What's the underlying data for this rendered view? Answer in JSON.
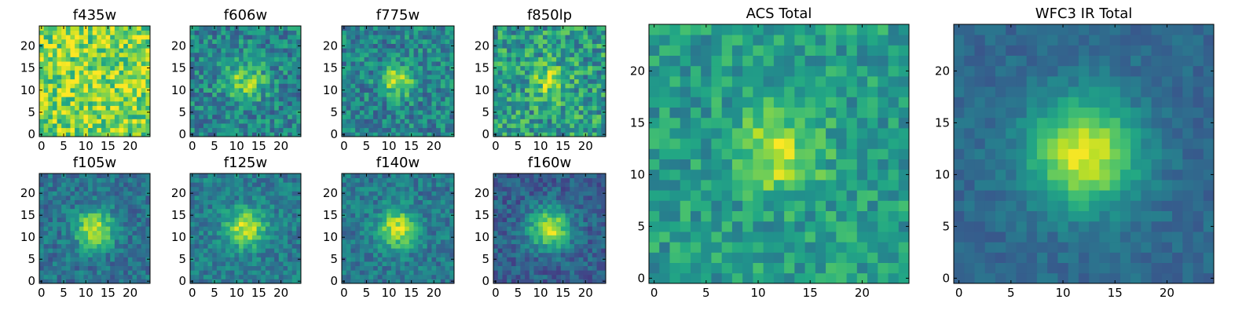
{
  "chart_data": [
    {
      "type": "heatmap",
      "title": "f435w",
      "xticks": [
        "0",
        "5",
        "10",
        "15",
        "20"
      ],
      "yticks": [
        "0",
        "5",
        "10",
        "15",
        "20"
      ],
      "xlim": [
        -0.5,
        24.5
      ],
      "ylim": [
        -0.5,
        24.5
      ],
      "grid_size": 25,
      "colormap": "viridis",
      "center": [
        12,
        12
      ],
      "peak_width": 9.0,
      "peak_strength": 0.05,
      "background": 0.78,
      "noise": 0.24,
      "seed": 11
    },
    {
      "type": "heatmap",
      "title": "f606w",
      "xticks": [
        "0",
        "5",
        "10",
        "15",
        "20"
      ],
      "yticks": [
        "0",
        "5",
        "10",
        "15",
        "20"
      ],
      "xlim": [
        -0.5,
        24.5
      ],
      "ylim": [
        -0.5,
        24.5
      ],
      "grid_size": 25,
      "colormap": "viridis",
      "center": [
        12,
        12
      ],
      "peak_width": 3.2,
      "peak_strength": 0.35,
      "background": 0.45,
      "noise": 0.2,
      "seed": 22
    },
    {
      "type": "heatmap",
      "title": "f775w",
      "xticks": [
        "0",
        "5",
        "10",
        "15",
        "20"
      ],
      "yticks": [
        "0",
        "5",
        "10",
        "15",
        "20"
      ],
      "xlim": [
        -0.5,
        24.5
      ],
      "ylim": [
        -0.5,
        24.5
      ],
      "grid_size": 25,
      "colormap": "viridis",
      "center": [
        12,
        12
      ],
      "peak_width": 2.4,
      "peak_strength": 0.45,
      "background": 0.45,
      "noise": 0.2,
      "seed": 33
    },
    {
      "type": "heatmap",
      "title": "f850lp",
      "xticks": [
        "0",
        "5",
        "10",
        "15",
        "20"
      ],
      "yticks": [
        "0",
        "5",
        "10",
        "15",
        "20"
      ],
      "xlim": [
        -0.5,
        24.5
      ],
      "ylim": [
        -0.5,
        24.5
      ],
      "grid_size": 25,
      "colormap": "viridis",
      "center": [
        12,
        12
      ],
      "peak_width": 2.6,
      "peak_strength": 0.3,
      "background": 0.55,
      "noise": 0.24,
      "seed": 44
    },
    {
      "type": "heatmap",
      "title": "f105w",
      "xticks": [
        "0",
        "5",
        "10",
        "15",
        "20"
      ],
      "yticks": [
        "0",
        "5",
        "10",
        "15",
        "20"
      ],
      "xlim": [
        -0.5,
        24.5
      ],
      "ylim": [
        -0.5,
        24.5
      ],
      "grid_size": 25,
      "colormap": "viridis",
      "center": [
        12,
        12
      ],
      "peak_width": 3.0,
      "peak_strength": 0.55,
      "background": 0.38,
      "noise": 0.14,
      "seed": 55
    },
    {
      "type": "heatmap",
      "title": "f125w",
      "xticks": [
        "0",
        "5",
        "10",
        "15",
        "20"
      ],
      "yticks": [
        "0",
        "5",
        "10",
        "15",
        "20"
      ],
      "xlim": [
        -0.5,
        24.5
      ],
      "ylim": [
        -0.5,
        24.5
      ],
      "grid_size": 25,
      "colormap": "viridis",
      "center": [
        12,
        12
      ],
      "peak_width": 3.0,
      "peak_strength": 0.5,
      "background": 0.42,
      "noise": 0.14,
      "seed": 66
    },
    {
      "type": "heatmap",
      "title": "f140w",
      "xticks": [
        "0",
        "5",
        "10",
        "15",
        "20"
      ],
      "yticks": [
        "0",
        "5",
        "10",
        "15",
        "20"
      ],
      "xlim": [
        -0.5,
        24.5
      ],
      "ylim": [
        -0.5,
        24.5
      ],
      "grid_size": 25,
      "colormap": "viridis",
      "center": [
        12,
        12
      ],
      "peak_width": 3.0,
      "peak_strength": 0.52,
      "background": 0.4,
      "noise": 0.14,
      "seed": 77
    },
    {
      "type": "heatmap",
      "title": "f160w",
      "xticks": [
        "0",
        "5",
        "10",
        "15",
        "20"
      ],
      "yticks": [
        "0",
        "5",
        "10",
        "15",
        "20"
      ],
      "xlim": [
        -0.5,
        24.5
      ],
      "ylim": [
        -0.5,
        24.5
      ],
      "grid_size": 25,
      "colormap": "viridis",
      "center": [
        12,
        12
      ],
      "peak_width": 3.2,
      "peak_strength": 0.62,
      "background": 0.3,
      "noise": 0.13,
      "seed": 88
    },
    {
      "type": "heatmap",
      "title": "ACS Total",
      "xticks": [
        "0",
        "5",
        "10",
        "15",
        "20"
      ],
      "yticks": [
        "0",
        "5",
        "10",
        "15",
        "20"
      ],
      "xlim": [
        -0.5,
        24.5
      ],
      "ylim": [
        -0.5,
        24.5
      ],
      "grid_size": 25,
      "colormap": "viridis",
      "center": [
        12,
        12
      ],
      "peak_width": 2.6,
      "peak_strength": 0.38,
      "background": 0.55,
      "noise": 0.16,
      "seed": 99
    },
    {
      "type": "heatmap",
      "title": "WFC3 IR Total",
      "xticks": [
        "0",
        "5",
        "10",
        "15",
        "20"
      ],
      "yticks": [
        "0",
        "5",
        "10",
        "15",
        "20"
      ],
      "xlim": [
        -0.5,
        24.5
      ],
      "ylim": [
        -0.5,
        24.5
      ],
      "grid_size": 25,
      "colormap": "viridis",
      "center": [
        12,
        12
      ],
      "peak_width": 3.6,
      "peak_strength": 0.62,
      "background": 0.34,
      "noise": 0.07,
      "seed": 111
    }
  ]
}
